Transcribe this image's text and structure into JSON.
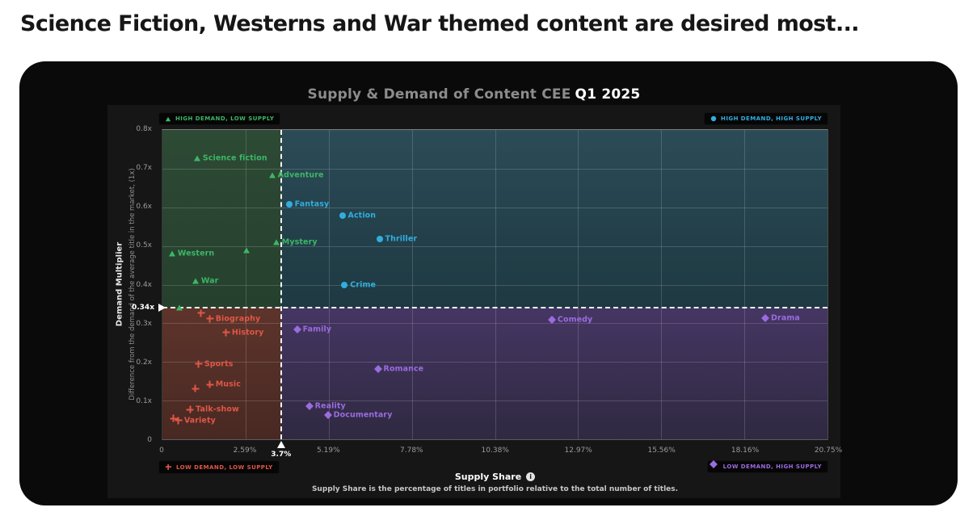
{
  "page": {
    "headline": "Science Fiction, Westerns and War themed content are desired most..."
  },
  "chart": {
    "title_prefix": "Supply & Demand of Content CEE",
    "title_highlight": "Q1 2025",
    "y_axis": {
      "title": "Demand Multiplier",
      "subtitle": "Difference from the demand of the average title in the market, (1x)"
    },
    "x_axis": {
      "title": "Supply Share",
      "info_glyph": "i",
      "subtitle": "Supply Share is the percentage of titles in portfolio relative to the total number of titles."
    },
    "badges": [
      {
        "pos": "tl",
        "shape": "triangle",
        "color": "#3cb765",
        "label": "HIGH DEMAND, LOW SUPPLY"
      },
      {
        "pos": "tr",
        "shape": "circle",
        "color": "#31aede",
        "label": "HIGH DEMAND, HIGH SUPPLY"
      },
      {
        "pos": "bl",
        "shape": "plus",
        "color": "#e05747",
        "label": "LOW DEMAND, LOW SUPPLY"
      },
      {
        "pos": "br",
        "shape": "diamond",
        "color": "#9b6be0",
        "label": "LOW DEMAND, HIGH SUPPLY"
      }
    ]
  },
  "chart_data": {
    "type": "scatter",
    "title": "Supply & Demand of Content CEE Q1 2025",
    "xlabel": "Supply Share",
    "ylabel": "Demand Multiplier",
    "x_range": [
      0,
      20.75
    ],
    "y_range": [
      0,
      0.8
    ],
    "grid": true,
    "x_ticks": [
      {
        "v": 0,
        "label": "0"
      },
      {
        "v": 2.59,
        "label": "2.59%"
      },
      {
        "v": 5.19,
        "label": "5.19%"
      },
      {
        "v": 7.78,
        "label": "7.78%"
      },
      {
        "v": 10.38,
        "label": "10.38%"
      },
      {
        "v": 12.97,
        "label": "12.97%"
      },
      {
        "v": 15.56,
        "label": "15.56%"
      },
      {
        "v": 18.16,
        "label": "18.16%"
      },
      {
        "v": 20.75,
        "label": "20.75%"
      }
    ],
    "y_ticks": [
      {
        "v": 0,
        "label": "0"
      },
      {
        "v": 0.1,
        "label": "0.1x"
      },
      {
        "v": 0.2,
        "label": "0.2x"
      },
      {
        "v": 0.3,
        "label": "0.3x"
      },
      {
        "v": 0.4,
        "label": "0.4x"
      },
      {
        "v": 0.5,
        "label": "0.5x"
      },
      {
        "v": 0.6,
        "label": "0.6x"
      },
      {
        "v": 0.7,
        "label": "0.7x"
      },
      {
        "v": 0.8,
        "label": "0.8x"
      }
    ],
    "thresholds": {
      "x": {
        "v": 3.7,
        "label": "3.7%"
      },
      "y": {
        "v": 0.34,
        "label": "0.34x"
      }
    },
    "quadrants": [
      {
        "pos": "top-left",
        "name": "HIGH DEMAND, LOW SUPPLY",
        "color_top": "#2d4a35",
        "color_bottom": "#26402e"
      },
      {
        "pos": "top-right",
        "name": "HIGH DEMAND, HIGH SUPPLY",
        "color_top": "#2b4b57",
        "color_bottom": "#1e3942"
      },
      {
        "pos": "bottom-left",
        "name": "LOW DEMAND, LOW SUPPLY",
        "color_top": "#5d342b",
        "color_bottom": "#482922"
      },
      {
        "pos": "bottom-right",
        "name": "LOW DEMAND, HIGH SUPPLY",
        "color_top": "#453663",
        "color_bottom": "#2f2941"
      }
    ],
    "series": [
      {
        "name": "HIGH DEMAND, LOW SUPPLY",
        "marker": "triangle",
        "color": "#3cb765",
        "points": [
          {
            "label": "Science fiction",
            "x": 1.08,
            "y": 0.727
          },
          {
            "label": "Adventure",
            "x": 3.42,
            "y": 0.682
          },
          {
            "label": "Mystery",
            "x": 3.55,
            "y": 0.509
          },
          {
            "label": "Western",
            "x": 0.3,
            "y": 0.48
          },
          {
            "label": "War",
            "x": 1.03,
            "y": 0.409
          }
        ],
        "extra_points": [
          {
            "x": 2.62,
            "y": 0.488
          },
          {
            "x": 0.53,
            "y": 0.341
          }
        ]
      },
      {
        "name": "HIGH DEMAND, HIGH SUPPLY",
        "marker": "circle",
        "color": "#31aede",
        "points": [
          {
            "label": "Fantasy",
            "x": 3.95,
            "y": 0.607
          },
          {
            "label": "Action",
            "x": 5.61,
            "y": 0.578
          },
          {
            "label": "Thriller",
            "x": 6.77,
            "y": 0.517
          },
          {
            "label": "Crime",
            "x": 5.68,
            "y": 0.399
          }
        ],
        "extra_points": []
      },
      {
        "name": "LOW DEMAND, LOW SUPPLY",
        "marker": "plus",
        "color": "#e05747",
        "points": [
          {
            "label": "Biography",
            "x": 1.48,
            "y": 0.312
          },
          {
            "label": "History",
            "x": 1.99,
            "y": 0.276
          },
          {
            "label": "Sports",
            "x": 1.13,
            "y": 0.195
          },
          {
            "label": "Music",
            "x": 1.48,
            "y": 0.141
          },
          {
            "label": "Talk-show",
            "x": 0.86,
            "y": 0.077
          },
          {
            "label": "Variety",
            "x": 0.5,
            "y": 0.048
          }
        ],
        "extra_points": [
          {
            "x": 1.21,
            "y": 0.326
          },
          {
            "x": 1.03,
            "y": 0.131
          },
          {
            "x": 0.35,
            "y": 0.054
          }
        ]
      },
      {
        "name": "LOW DEMAND, HIGH SUPPLY",
        "marker": "diamond",
        "color": "#9b6be0",
        "points": [
          {
            "label": "Comedy",
            "x": 12.15,
            "y": 0.31
          },
          {
            "label": "Drama",
            "x": 18.81,
            "y": 0.314
          },
          {
            "label": "Family",
            "x": 4.2,
            "y": 0.285
          },
          {
            "label": "Romance",
            "x": 6.72,
            "y": 0.181
          },
          {
            "label": "Reality",
            "x": 4.58,
            "y": 0.085
          },
          {
            "label": "Documentary",
            "x": 5.16,
            "y": 0.062
          }
        ],
        "extra_points": []
      }
    ]
  }
}
